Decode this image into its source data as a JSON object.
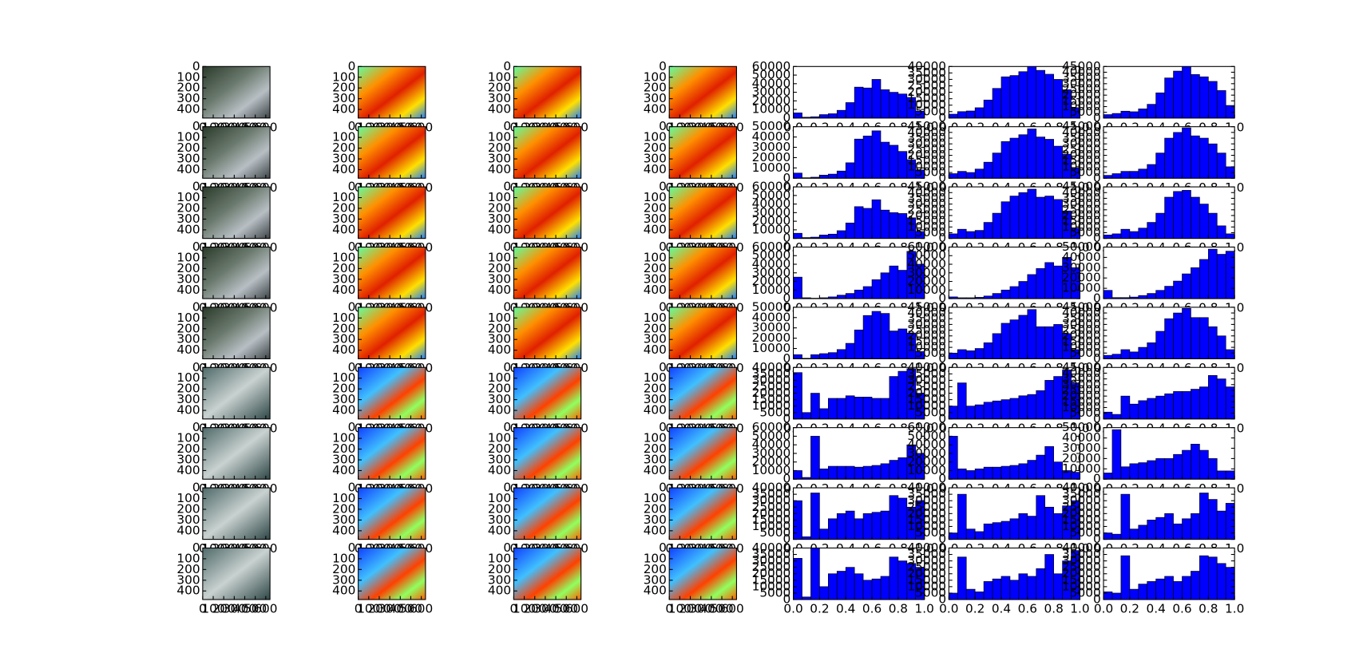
{
  "image_axes": {
    "xlim": [
      0,
      640
    ],
    "ylim": [
      480,
      0
    ],
    "xticks": [
      0,
      100,
      200,
      300,
      400,
      500,
      600
    ],
    "yticks": [
      0,
      100,
      200,
      300,
      400
    ]
  },
  "hist_axes": {
    "xlim": [
      0,
      1
    ],
    "bins": [
      0,
      0.0667,
      0.1333,
      0.2,
      0.2667,
      0.3333,
      0.4,
      0.4667,
      0.5333,
      0.6,
      0.6667,
      0.7333,
      0.8,
      0.8667,
      0.9333,
      1
    ],
    "xticks": [
      {
        "value": 0,
        "label": "0.0"
      },
      {
        "value": 0.2,
        "label": "0.2"
      },
      {
        "value": 0.4,
        "label": "0.4"
      },
      {
        "value": 0.6,
        "label": "0.6"
      },
      {
        "value": 0.8,
        "label": "0.8"
      },
      {
        "value": 1,
        "label": "1.0"
      }
    ]
  },
  "chart_data": [
    {
      "type": "histogram",
      "ylim": [
        0,
        60000
      ],
      "yticks": [
        0,
        10000,
        20000,
        30000,
        40000,
        50000,
        60000
      ],
      "values": [
        6000,
        1000,
        1500,
        4000,
        5000,
        9000,
        18000,
        36000,
        35000,
        45000,
        33000,
        30000,
        28000,
        24000,
        8000
      ]
    },
    {
      "type": "histogram",
      "ylim": [
        0,
        40000
      ],
      "yticks": [
        0,
        5000,
        10000,
        15000,
        20000,
        25000,
        30000,
        35000,
        40000
      ],
      "values": [
        3000,
        5000,
        5500,
        8000,
        14000,
        23000,
        32000,
        33000,
        36000,
        40000,
        37000,
        34000,
        30000,
        22000,
        8000
      ]
    },
    {
      "type": "histogram",
      "ylim": [
        0,
        45000
      ],
      "yticks": [
        0,
        5000,
        10000,
        15000,
        20000,
        25000,
        30000,
        35000,
        40000,
        45000
      ],
      "values": [
        3000,
        4000,
        6000,
        5500,
        8000,
        12000,
        22000,
        35000,
        41000,
        45000,
        38000,
        36000,
        32000,
        24000,
        11000
      ]
    },
    {
      "type": "histogram",
      "ylim": [
        0,
        50000
      ],
      "yticks": [
        0,
        10000,
        20000,
        30000,
        40000,
        50000
      ],
      "values": [
        5000,
        500,
        1000,
        3000,
        4000,
        7000,
        15000,
        38000,
        41000,
        46000,
        35000,
        32000,
        26000,
        18000,
        8000
      ]
    },
    {
      "type": "histogram",
      "ylim": [
        0,
        45000
      ],
      "yticks": [
        0,
        5000,
        10000,
        15000,
        20000,
        25000,
        30000,
        35000,
        40000,
        45000
      ],
      "values": [
        4000,
        6000,
        5000,
        8000,
        14000,
        22000,
        32000,
        35000,
        38000,
        43000,
        36000,
        34000,
        28000,
        21000,
        9000
      ]
    },
    {
      "type": "histogram",
      "ylim": [
        0,
        45000
      ],
      "yticks": [
        0,
        5000,
        10000,
        15000,
        20000,
        25000,
        30000,
        35000,
        40000,
        45000
      ],
      "values": [
        2500,
        4000,
        6000,
        6000,
        8000,
        12000,
        22000,
        35000,
        40000,
        44000,
        37000,
        35000,
        30000,
        22000,
        10000
      ]
    },
    {
      "type": "histogram",
      "ylim": [
        0,
        60000
      ],
      "yticks": [
        0,
        10000,
        20000,
        30000,
        40000,
        50000,
        60000
      ],
      "values": [
        6000,
        1000,
        1500,
        4000,
        5000,
        9000,
        18000,
        37000,
        35000,
        45000,
        33000,
        30000,
        29000,
        24000,
        8000
      ]
    },
    {
      "type": "histogram",
      "ylim": [
        0,
        45000
      ],
      "yticks": [
        0,
        5000,
        10000,
        15000,
        20000,
        25000,
        30000,
        35000,
        40000,
        45000
      ],
      "values": [
        4000,
        8000,
        6000,
        7000,
        14000,
        22000,
        32000,
        37000,
        40000,
        43000,
        36000,
        37000,
        34000,
        24000,
        9000
      ]
    },
    {
      "type": "histogram",
      "ylim": [
        0,
        45000
      ],
      "yticks": [
        0,
        5000,
        10000,
        15000,
        20000,
        25000,
        30000,
        35000,
        40000,
        45000
      ],
      "values": [
        3000,
        4000,
        8000,
        6000,
        9000,
        14000,
        22000,
        36000,
        41000,
        42000,
        36000,
        30000,
        22000,
        11000,
        4000
      ]
    },
    {
      "type": "histogram",
      "ylim": [
        0,
        60000
      ],
      "yticks": [
        0,
        10000,
        20000,
        30000,
        40000,
        50000,
        60000
      ],
      "values": [
        25000,
        1000,
        500,
        1000,
        2000,
        4000,
        6000,
        10000,
        14000,
        22000,
        30000,
        38000,
        33000,
        55000,
        40000
      ]
    },
    {
      "type": "histogram",
      "ylim": [
        0,
        60000
      ],
      "yticks": [
        0,
        10000,
        20000,
        30000,
        40000,
        50000,
        60000
      ],
      "values": [
        2000,
        1000,
        1000,
        1500,
        3000,
        6000,
        10000,
        14000,
        20000,
        28000,
        35000,
        42000,
        38000,
        48000,
        36000
      ]
    },
    {
      "type": "histogram",
      "ylim": [
        0,
        50000
      ],
      "yticks": [
        0,
        10000,
        20000,
        30000,
        40000,
        50000
      ],
      "values": [
        8000,
        1000,
        1000,
        1500,
        3000,
        5000,
        8000,
        12000,
        17000,
        24000,
        30000,
        38000,
        48000,
        43000,
        46000
      ]
    },
    {
      "type": "histogram",
      "ylim": [
        0,
        50000
      ],
      "yticks": [
        0,
        10000,
        20000,
        30000,
        40000,
        50000
      ],
      "values": [
        4000,
        500,
        4000,
        5000,
        6000,
        9000,
        15000,
        28000,
        42000,
        46000,
        44000,
        27000,
        29000,
        25000,
        7000
      ]
    },
    {
      "type": "histogram",
      "ylim": [
        0,
        45000
      ],
      "yticks": [
        0,
        5000,
        10000,
        15000,
        20000,
        25000,
        30000,
        35000,
        40000,
        45000
      ],
      "values": [
        5000,
        8000,
        7000,
        9000,
        14000,
        22000,
        31000,
        34000,
        38000,
        43000,
        28000,
        28000,
        30000,
        22000,
        8000
      ]
    },
    {
      "type": "histogram",
      "ylim": [
        0,
        45000
      ],
      "yticks": [
        0,
        5000,
        10000,
        15000,
        20000,
        25000,
        30000,
        35000,
        40000,
        45000
      ],
      "values": [
        3000,
        4000,
        8000,
        6000,
        10000,
        14000,
        24000,
        35000,
        40000,
        44000,
        36000,
        36000,
        28000,
        20000,
        8000
      ]
    },
    {
      "type": "histogram",
      "ylim": [
        0,
        40000
      ],
      "yticks": [
        0,
        5000,
        10000,
        15000,
        20000,
        25000,
        30000,
        35000,
        40000
      ],
      "values": [
        36000,
        5000,
        20000,
        8000,
        16000,
        16000,
        18000,
        17000,
        17000,
        16000,
        16000,
        33000,
        37000,
        39000,
        20000
      ]
    },
    {
      "type": "histogram",
      "ylim": [
        0,
        40000
      ],
      "yticks": [
        0,
        5000,
        10000,
        15000,
        20000,
        25000,
        30000,
        35000,
        40000
      ],
      "values": [
        10000,
        28000,
        10000,
        11000,
        13000,
        14000,
        15000,
        16000,
        18000,
        19000,
        22000,
        30000,
        33000,
        38000,
        28000
      ]
    },
    {
      "type": "histogram",
      "ylim": [
        0,
        45000
      ],
      "yticks": [
        0,
        5000,
        10000,
        15000,
        20000,
        25000,
        30000,
        35000,
        40000,
        45000
      ],
      "values": [
        6000,
        4000,
        20000,
        13000,
        16000,
        18000,
        20000,
        22000,
        24000,
        24000,
        26000,
        28000,
        38000,
        35000,
        28000
      ]
    },
    {
      "type": "histogram",
      "ylim": [
        0,
        60000
      ],
      "yticks": [
        0,
        10000,
        20000,
        30000,
        40000,
        50000,
        60000
      ],
      "values": [
        10000,
        2000,
        50000,
        12000,
        15000,
        15000,
        15000,
        14000,
        15000,
        16000,
        18000,
        22000,
        25000,
        40000,
        30000
      ]
    },
    {
      "type": "histogram",
      "ylim": [
        0,
        60000
      ],
      "yticks": [
        0,
        10000,
        20000,
        30000,
        40000,
        50000,
        60000
      ],
      "values": [
        50000,
        12000,
        10000,
        12000,
        14000,
        14000,
        15000,
        16000,
        18000,
        22000,
        28000,
        38000,
        20000,
        10000,
        8000
      ]
    },
    {
      "type": "histogram",
      "ylim": [
        0,
        50000
      ],
      "yticks": [
        0,
        10000,
        20000,
        30000,
        40000,
        50000
      ],
      "values": [
        6000,
        48000,
        12000,
        15000,
        16000,
        18000,
        20000,
        20000,
        24000,
        28000,
        34000,
        28000,
        20000,
        8000,
        8000
      ]
    },
    {
      "type": "histogram",
      "ylim": [
        0,
        40000
      ],
      "yticks": [
        0,
        5000,
        10000,
        15000,
        20000,
        25000,
        30000,
        35000,
        40000
      ],
      "values": [
        30000,
        2000,
        36000,
        8000,
        16000,
        20000,
        22000,
        16000,
        20000,
        21000,
        22000,
        34000,
        32000,
        25000,
        30000
      ]
    },
    {
      "type": "histogram",
      "ylim": [
        0,
        40000
      ],
      "yticks": [
        0,
        5000,
        10000,
        15000,
        20000,
        25000,
        30000,
        35000,
        40000
      ],
      "values": [
        5000,
        35000,
        8000,
        6000,
        12000,
        13000,
        14000,
        16000,
        20000,
        18000,
        34000,
        25000,
        20000,
        26000,
        30000
      ]
    },
    {
      "type": "histogram",
      "ylim": [
        0,
        40000
      ],
      "yticks": [
        0,
        5000,
        10000,
        15000,
        20000,
        25000,
        30000,
        35000,
        40000
      ],
      "values": [
        5000,
        4000,
        35000,
        8000,
        11000,
        15000,
        17000,
        20000,
        12000,
        16000,
        20000,
        36000,
        31000,
        22000,
        28000
      ]
    },
    {
      "type": "histogram",
      "ylim": [
        0,
        40000
      ],
      "yticks": [
        0,
        5000,
        10000,
        15000,
        20000,
        25000,
        30000,
        35000,
        40000
      ],
      "values": [
        32000,
        2000,
        40000,
        10000,
        20000,
        22000,
        25000,
        20000,
        15000,
        16000,
        18000,
        33000,
        30000,
        28000,
        25000
      ]
    },
    {
      "type": "histogram",
      "ylim": [
        0,
        40000
      ],
      "yticks": [
        0,
        5000,
        10000,
        15000,
        20000,
        25000,
        30000,
        35000,
        40000
      ],
      "values": [
        5000,
        33000,
        8000,
        6000,
        14000,
        16000,
        18000,
        15000,
        20000,
        18000,
        24000,
        35000,
        20000,
        30000,
        38000
      ]
    },
    {
      "type": "histogram",
      "ylim": [
        0,
        40000
      ],
      "yticks": [
        0,
        5000,
        10000,
        15000,
        20000,
        25000,
        30000,
        35000,
        40000
      ],
      "values": [
        6000,
        5000,
        34000,
        8000,
        12000,
        14000,
        16000,
        18000,
        14000,
        18000,
        22000,
        34000,
        33000,
        28000,
        25000
      ]
    }
  ]
}
